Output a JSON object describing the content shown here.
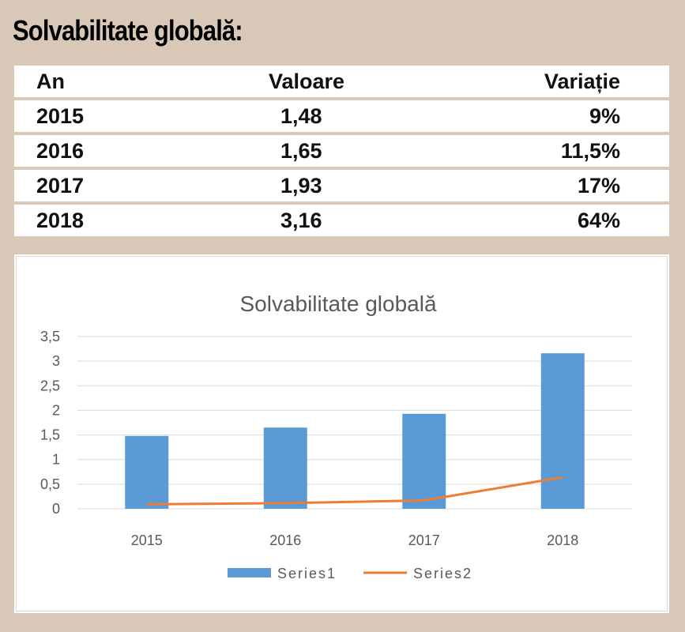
{
  "header": {
    "title": "Solvabilitate globală:"
  },
  "table": {
    "columns": [
      "An",
      "Valoare",
      "Variație"
    ],
    "rows": [
      [
        "2015",
        "1,48",
        "9%"
      ],
      [
        "2016",
        "1,65",
        "11,5%"
      ],
      [
        "2017",
        "1,93",
        "17%"
      ],
      [
        "2018",
        "3,16",
        "64%"
      ]
    ]
  },
  "chart_data": {
    "type": "bar",
    "title": "Solvabilitate globală",
    "categories": [
      "2015",
      "2016",
      "2017",
      "2018"
    ],
    "series": [
      {
        "name": "Series1",
        "type": "bar",
        "color": "#5b9bd5",
        "values": [
          1.48,
          1.65,
          1.93,
          3.16
        ]
      },
      {
        "name": "Series2",
        "type": "line",
        "color": "#ed7d31",
        "values": [
          0.09,
          0.115,
          0.17,
          0.64
        ]
      }
    ],
    "ylim": [
      0,
      3.5
    ],
    "yticks": [
      "0",
      "0,5",
      "1",
      "1,5",
      "2",
      "2,5",
      "3",
      "3,5"
    ],
    "grid": true,
    "legend": "bottom"
  }
}
